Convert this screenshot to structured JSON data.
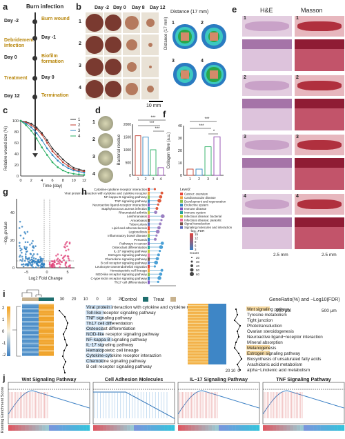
{
  "panel_labels": {
    "a": "a",
    "b": "b",
    "c": "c",
    "d": "d",
    "e": "e",
    "f": "f",
    "g": "g",
    "h": "h",
    "i": "i",
    "j": "j"
  },
  "panel_a": {
    "title": "Burn infection",
    "events": [
      {
        "day": "Day -2",
        "label": "Burn wound"
      },
      {
        "day": "Day -1",
        "label": "Debridement\nInfection"
      },
      {
        "day": "Day 0",
        "label": "Biofilm\nformation"
      },
      {
        "day": "Day 0",
        "label": "Treatment"
      },
      {
        "day": "Day 12",
        "label": "Termination"
      }
    ]
  },
  "panel_b": {
    "columns": [
      "Day -2",
      "Day 0",
      "Day 8",
      "Day 12"
    ],
    "rows": [
      "1",
      "2",
      "3",
      "4"
    ],
    "right_title": "Distance (17 mm)",
    "right_axis_label": "Distance (17 mm)",
    "scalebar": "10 mm"
  },
  "panel_c": {
    "ylabel": "Relative wound size (%)",
    "xlabel": "Time (day)",
    "yticks": [
      "0",
      "20",
      "40",
      "60",
      "80",
      "100"
    ],
    "xticks": [
      "0",
      "2",
      "4",
      "6",
      "8",
      "10",
      "12"
    ]
  },
  "panel_d": {
    "ylabel": "Bacterial residue",
    "xticks": [
      "1",
      "2",
      "3",
      "4"
    ],
    "yticks": [
      "0",
      "500",
      "1000",
      "1500",
      "2000"
    ],
    "sig": [
      "***",
      "***",
      "***"
    ]
  },
  "panel_e": {
    "he_title": "H&E",
    "masson_title": "Masson",
    "scale_large": "2.5 mm",
    "scale_small": "500 μm"
  },
  "panel_f": {
    "ylabel": "Collagen fibre (a.u.)",
    "xticks": [
      "1",
      "2",
      "3",
      "4"
    ],
    "yticks": [
      "0",
      "10",
      "20",
      "30",
      "40"
    ],
    "sig": [
      "***",
      "***",
      "*"
    ]
  },
  "panel_g": {
    "ylabel": "−log₁₀pvalue",
    "xlabel": "Log2 Fold Change",
    "yticks": [
      "0",
      "20",
      "40"
    ],
    "xticks": [
      "−5",
      "0",
      "5"
    ]
  },
  "panel_h": {
    "pathways": [
      "Cytokine-cytokine receptor interaction",
      "Viral protein interaction with cytokine and cytokine receptor",
      "NF-kappa B signaling pathway",
      "TNF signaling pathway",
      "Neuroactive ligand-receptor interaction",
      "Staphylococcus aureus infection",
      "Rheumatoid arthritis",
      "Leishmaniasis",
      "Amoebiasis",
      "Tuberculosis",
      "Lipid and atherosclerosis",
      "Legionellosis",
      "Inflammatory bowel disease",
      "Pertussis",
      "Pathways in cancer",
      "Osteoclast differentiation",
      "IL-17 signaling pathway",
      "Estrogen signaling pathway",
      "Chemokine signaling pathway",
      "B cell receptor signaling pathway",
      "Leukocyte transendothelial migration",
      "Hematopoietic cell lineage",
      "NOD-like receptor signaling pathway",
      "C-type lectin receptor signaling pathway",
      "Th17 cell differentiation"
    ],
    "legend_title": "Level2",
    "legend": [
      "Cancer: overview",
      "Cardiovascular disease",
      "Development and regeneration",
      "Endocrine system",
      "Immune disease",
      "Immune system",
      "Infectious disease: bacterial",
      "Infectious disease: parasitic",
      "Signal transduction",
      "Signaling molecules and interaction"
    ],
    "fdr_title": "-log₁₀FDR",
    "fdr_ticks": [
      "15",
      "12",
      "9",
      "6",
      "3"
    ],
    "count_title": "Count",
    "count_values": [
      "20",
      "30",
      "40",
      "50",
      "60"
    ],
    "xlabel": "GeneRatio",
    "xticks": [
      "0",
      "0.2",
      "0.4"
    ]
  },
  "panel_i": {
    "top_axis": [
      "30",
      "20",
      "10",
      "0",
      "10",
      "20"
    ],
    "control_label": "Control",
    "treat_label": "Treat",
    "left_pathways": [
      "Viral protein interaction with cytokine and cytokine receptor",
      "Toll-like receptor signaling pathway",
      "TNF signaling pathway",
      "Th17 cell differentiation",
      "Osteoclast differentiation",
      "NOD-like receptor signaling pathway",
      "NF-kappa B signaling pathway",
      "IL-17 signaling pathway",
      "Hematopoietic cell lineage",
      "Cytokine-cytokine receptor interaction",
      "Chemokine signaling pathway",
      "B cell receptor signaling pathway"
    ],
    "right_title": "GeneRatio(%) and −Log10(FDR)",
    "right_pathways": [
      "Wnt signaling pathway",
      "Tyrosine metabolism",
      "Tight junction",
      "Phototransduction",
      "Ovarian steroidogenesis",
      "Neuroactive ligand−receptor interaction",
      "Mineral absorption",
      "Melanogenesis",
      "Estrogen signaling pathway",
      "Biosynthesis of unsaturated fatty acids",
      "Arachidonic acid metabolism",
      "alpha−Linolenic acid metabolism"
    ],
    "bottom_axis": [
      "20",
      "10",
      "0"
    ],
    "scale_ticks": [
      "2",
      "1",
      "0",
      "-1",
      "-2"
    ]
  },
  "panel_j": {
    "titles": [
      "Wnt Signaling Pathway",
      "Cell Adhesion Molecules",
      "IL−17 Signaling Pathway",
      "TNF Signaling Pathway"
    ],
    "ylabel": "Running Enrichment Score"
  },
  "colors": {
    "g1": "#333333",
    "g2": "#c0392b",
    "g3": "#2e86c1",
    "g4": "#27ae60",
    "masson": "#b0303e",
    "he": "#c9a2c8",
    "orange": "#e8a23a",
    "blue": "#2f7fc1",
    "teal": "#1e6e6e",
    "tan": "#c8b28e"
  }
}
